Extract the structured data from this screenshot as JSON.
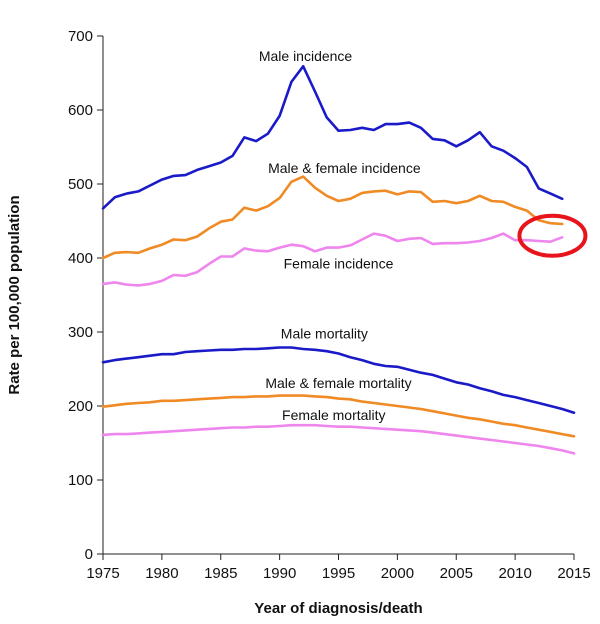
{
  "chart_data": {
    "type": "line",
    "xlabel": "Year of diagnosis/death",
    "ylabel": "Rate per 100,000 population",
    "xlim": [
      1975,
      2015
    ],
    "ylim": [
      0,
      700
    ],
    "xticks": [
      1975,
      1980,
      1985,
      1990,
      1995,
      2000,
      2005,
      2010,
      2015
    ],
    "yticks": [
      0,
      100,
      200,
      300,
      400,
      500,
      600,
      700
    ],
    "grid": false,
    "legend": "none",
    "highlight_color": "#e8141b",
    "highlight_x": 2013,
    "highlight_y": 422,
    "series": [
      {
        "name": "Male incidence",
        "color": "#1a1ac8",
        "x": [
          1975,
          1976,
          1977,
          1978,
          1979,
          1980,
          1981,
          1982,
          1983,
          1984,
          1985,
          1986,
          1987,
          1988,
          1989,
          1990,
          1991,
          1992,
          1993,
          1994,
          1995,
          1996,
          1997,
          1998,
          1999,
          2000,
          2001,
          2002,
          2003,
          2004,
          2005,
          2006,
          2007,
          2008,
          2009,
          2010,
          2011,
          2012,
          2013,
          2014
        ],
        "y": [
          467,
          482,
          487,
          490,
          498,
          506,
          511,
          512,
          519,
          524,
          529,
          538,
          563,
          558,
          568,
          592,
          638,
          659,
          625,
          590,
          572,
          573,
          576,
          573,
          581,
          581,
          583,
          576,
          561,
          559,
          551,
          559,
          570,
          551,
          545,
          535,
          523,
          494,
          487,
          480
        ]
      },
      {
        "name": "Male & female incidence",
        "color": "#f08a24",
        "x": [
          1975,
          1976,
          1977,
          1978,
          1979,
          1980,
          1981,
          1982,
          1983,
          1984,
          1985,
          1986,
          1987,
          1988,
          1989,
          1990,
          1991,
          1992,
          1993,
          1994,
          1995,
          1996,
          1997,
          1998,
          1999,
          2000,
          2001,
          2002,
          2003,
          2004,
          2005,
          2006,
          2007,
          2008,
          2009,
          2010,
          2011,
          2012,
          2013,
          2014
        ],
        "y": [
          400,
          407,
          408,
          407,
          413,
          418,
          425,
          424,
          429,
          440,
          449,
          452,
          468,
          464,
          470,
          481,
          503,
          510,
          495,
          484,
          477,
          480,
          488,
          490,
          491,
          486,
          490,
          489,
          476,
          477,
          474,
          477,
          484,
          477,
          476,
          469,
          464,
          451,
          447,
          446
        ]
      },
      {
        "name": "Female incidence",
        "color": "#ee86ee",
        "x": [
          1975,
          1976,
          1977,
          1978,
          1979,
          1980,
          1981,
          1982,
          1983,
          1984,
          1985,
          1986,
          1987,
          1988,
          1989,
          1990,
          1991,
          1992,
          1993,
          1994,
          1995,
          1996,
          1997,
          1998,
          1999,
          2000,
          2001,
          2002,
          2003,
          2004,
          2005,
          2006,
          2007,
          2008,
          2009,
          2010,
          2011,
          2012,
          2013,
          2014
        ],
        "y": [
          365,
          367,
          364,
          363,
          365,
          369,
          377,
          376,
          381,
          392,
          402,
          402,
          413,
          410,
          409,
          414,
          418,
          416,
          409,
          414,
          414,
          417,
          425,
          433,
          430,
          423,
          426,
          427,
          419,
          420,
          420,
          421,
          423,
          427,
          433,
          424,
          424,
          423,
          422,
          428
        ]
      },
      {
        "name": "Male mortality",
        "color": "#1a1ac8",
        "x": [
          1975,
          1976,
          1977,
          1978,
          1979,
          1980,
          1981,
          1982,
          1983,
          1984,
          1985,
          1986,
          1987,
          1988,
          1989,
          1990,
          1991,
          1992,
          1993,
          1994,
          1995,
          1996,
          1997,
          1998,
          1999,
          2000,
          2001,
          2002,
          2003,
          2004,
          2005,
          2006,
          2007,
          2008,
          2009,
          2010,
          2011,
          2012,
          2013,
          2014,
          2015
        ],
        "y": [
          259,
          262,
          264,
          266,
          268,
          270,
          270,
          273,
          274,
          275,
          276,
          276,
          277,
          277,
          278,
          279,
          279,
          277,
          276,
          274,
          271,
          266,
          262,
          257,
          254,
          253,
          249,
          245,
          242,
          237,
          232,
          229,
          224,
          220,
          215,
          212,
          208,
          204,
          200,
          196,
          191
        ]
      },
      {
        "name": "Male & female mortality",
        "color": "#f08a24",
        "x": [
          1975,
          1976,
          1977,
          1978,
          1979,
          1980,
          1981,
          1982,
          1983,
          1984,
          1985,
          1986,
          1987,
          1988,
          1989,
          1990,
          1991,
          1992,
          1993,
          1994,
          1995,
          1996,
          1997,
          1998,
          1999,
          2000,
          2001,
          2002,
          2003,
          2004,
          2005,
          2006,
          2007,
          2008,
          2009,
          2010,
          2011,
          2012,
          2013,
          2014,
          2015
        ],
        "y": [
          199,
          201,
          203,
          204,
          205,
          207,
          207,
          208,
          209,
          210,
          211,
          212,
          212,
          213,
          213,
          214,
          214,
          214,
          213,
          212,
          210,
          209,
          206,
          204,
          202,
          200,
          198,
          196,
          193,
          190,
          187,
          184,
          182,
          179,
          176,
          174,
          171,
          168,
          165,
          162,
          159
        ]
      },
      {
        "name": "Female mortality",
        "color": "#ee86ee",
        "x": [
          1975,
          1976,
          1977,
          1978,
          1979,
          1980,
          1981,
          1982,
          1983,
          1984,
          1985,
          1986,
          1987,
          1988,
          1989,
          1990,
          1991,
          1992,
          1993,
          1994,
          1995,
          1996,
          1997,
          1998,
          1999,
          2000,
          2001,
          2002,
          2003,
          2004,
          2005,
          2006,
          2007,
          2008,
          2009,
          2010,
          2011,
          2012,
          2013,
          2014,
          2015
        ],
        "y": [
          161,
          162,
          162,
          163,
          164,
          165,
          166,
          167,
          168,
          169,
          170,
          171,
          171,
          172,
          172,
          173,
          174,
          174,
          174,
          173,
          172,
          172,
          171,
          170,
          169,
          168,
          167,
          166,
          164,
          162,
          160,
          158,
          156,
          154,
          152,
          150,
          148,
          146,
          143,
          140,
          136
        ]
      }
    ],
    "annotations": [
      {
        "text": "Male incidence",
        "x": 1992.2,
        "y": 666
      },
      {
        "text": "Male & female incidence",
        "x": 1995.5,
        "y": 515
      },
      {
        "text": "Female incidence",
        "x": 1995.0,
        "y": 386
      },
      {
        "text": "Male mortality",
        "x": 1993.8,
        "y": 291
      },
      {
        "text": "Male & female mortality",
        "x": 1995.0,
        "y": 224
      },
      {
        "text": "Female mortality",
        "x": 1994.6,
        "y": 181
      }
    ]
  }
}
